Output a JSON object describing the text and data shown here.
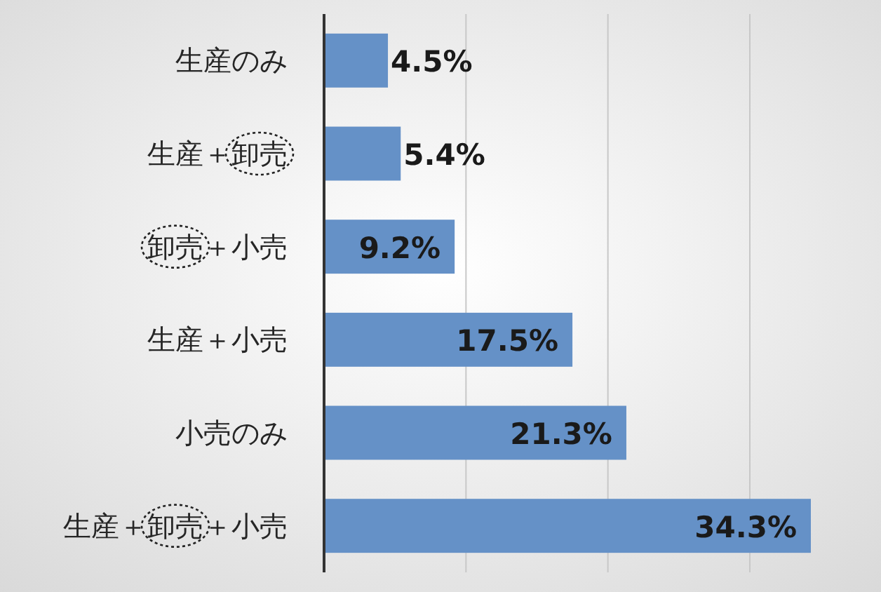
{
  "chart_data": {
    "type": "bar",
    "orientation": "horizontal",
    "categories": [
      "生産のみ",
      "生産＋卸売",
      "卸売＋小売",
      "生産＋小売",
      "小売のみ",
      "生産＋卸売＋小売"
    ],
    "values": [
      4.5,
      5.4,
      9.2,
      17.5,
      21.3,
      34.3
    ],
    "value_labels": [
      "4.5%",
      "5.4%",
      "9.2%",
      "17.5%",
      "21.3%",
      "34.3%"
    ],
    "color": "#6591c7",
    "xticks": [
      {
        "value": 0,
        "label": null
      },
      {
        "value": 10,
        "label": null
      },
      {
        "value": 20,
        "label": null
      },
      {
        "value": 30,
        "label": null
      }
    ],
    "grid": "x",
    "tick_labels": "y"
  }
}
